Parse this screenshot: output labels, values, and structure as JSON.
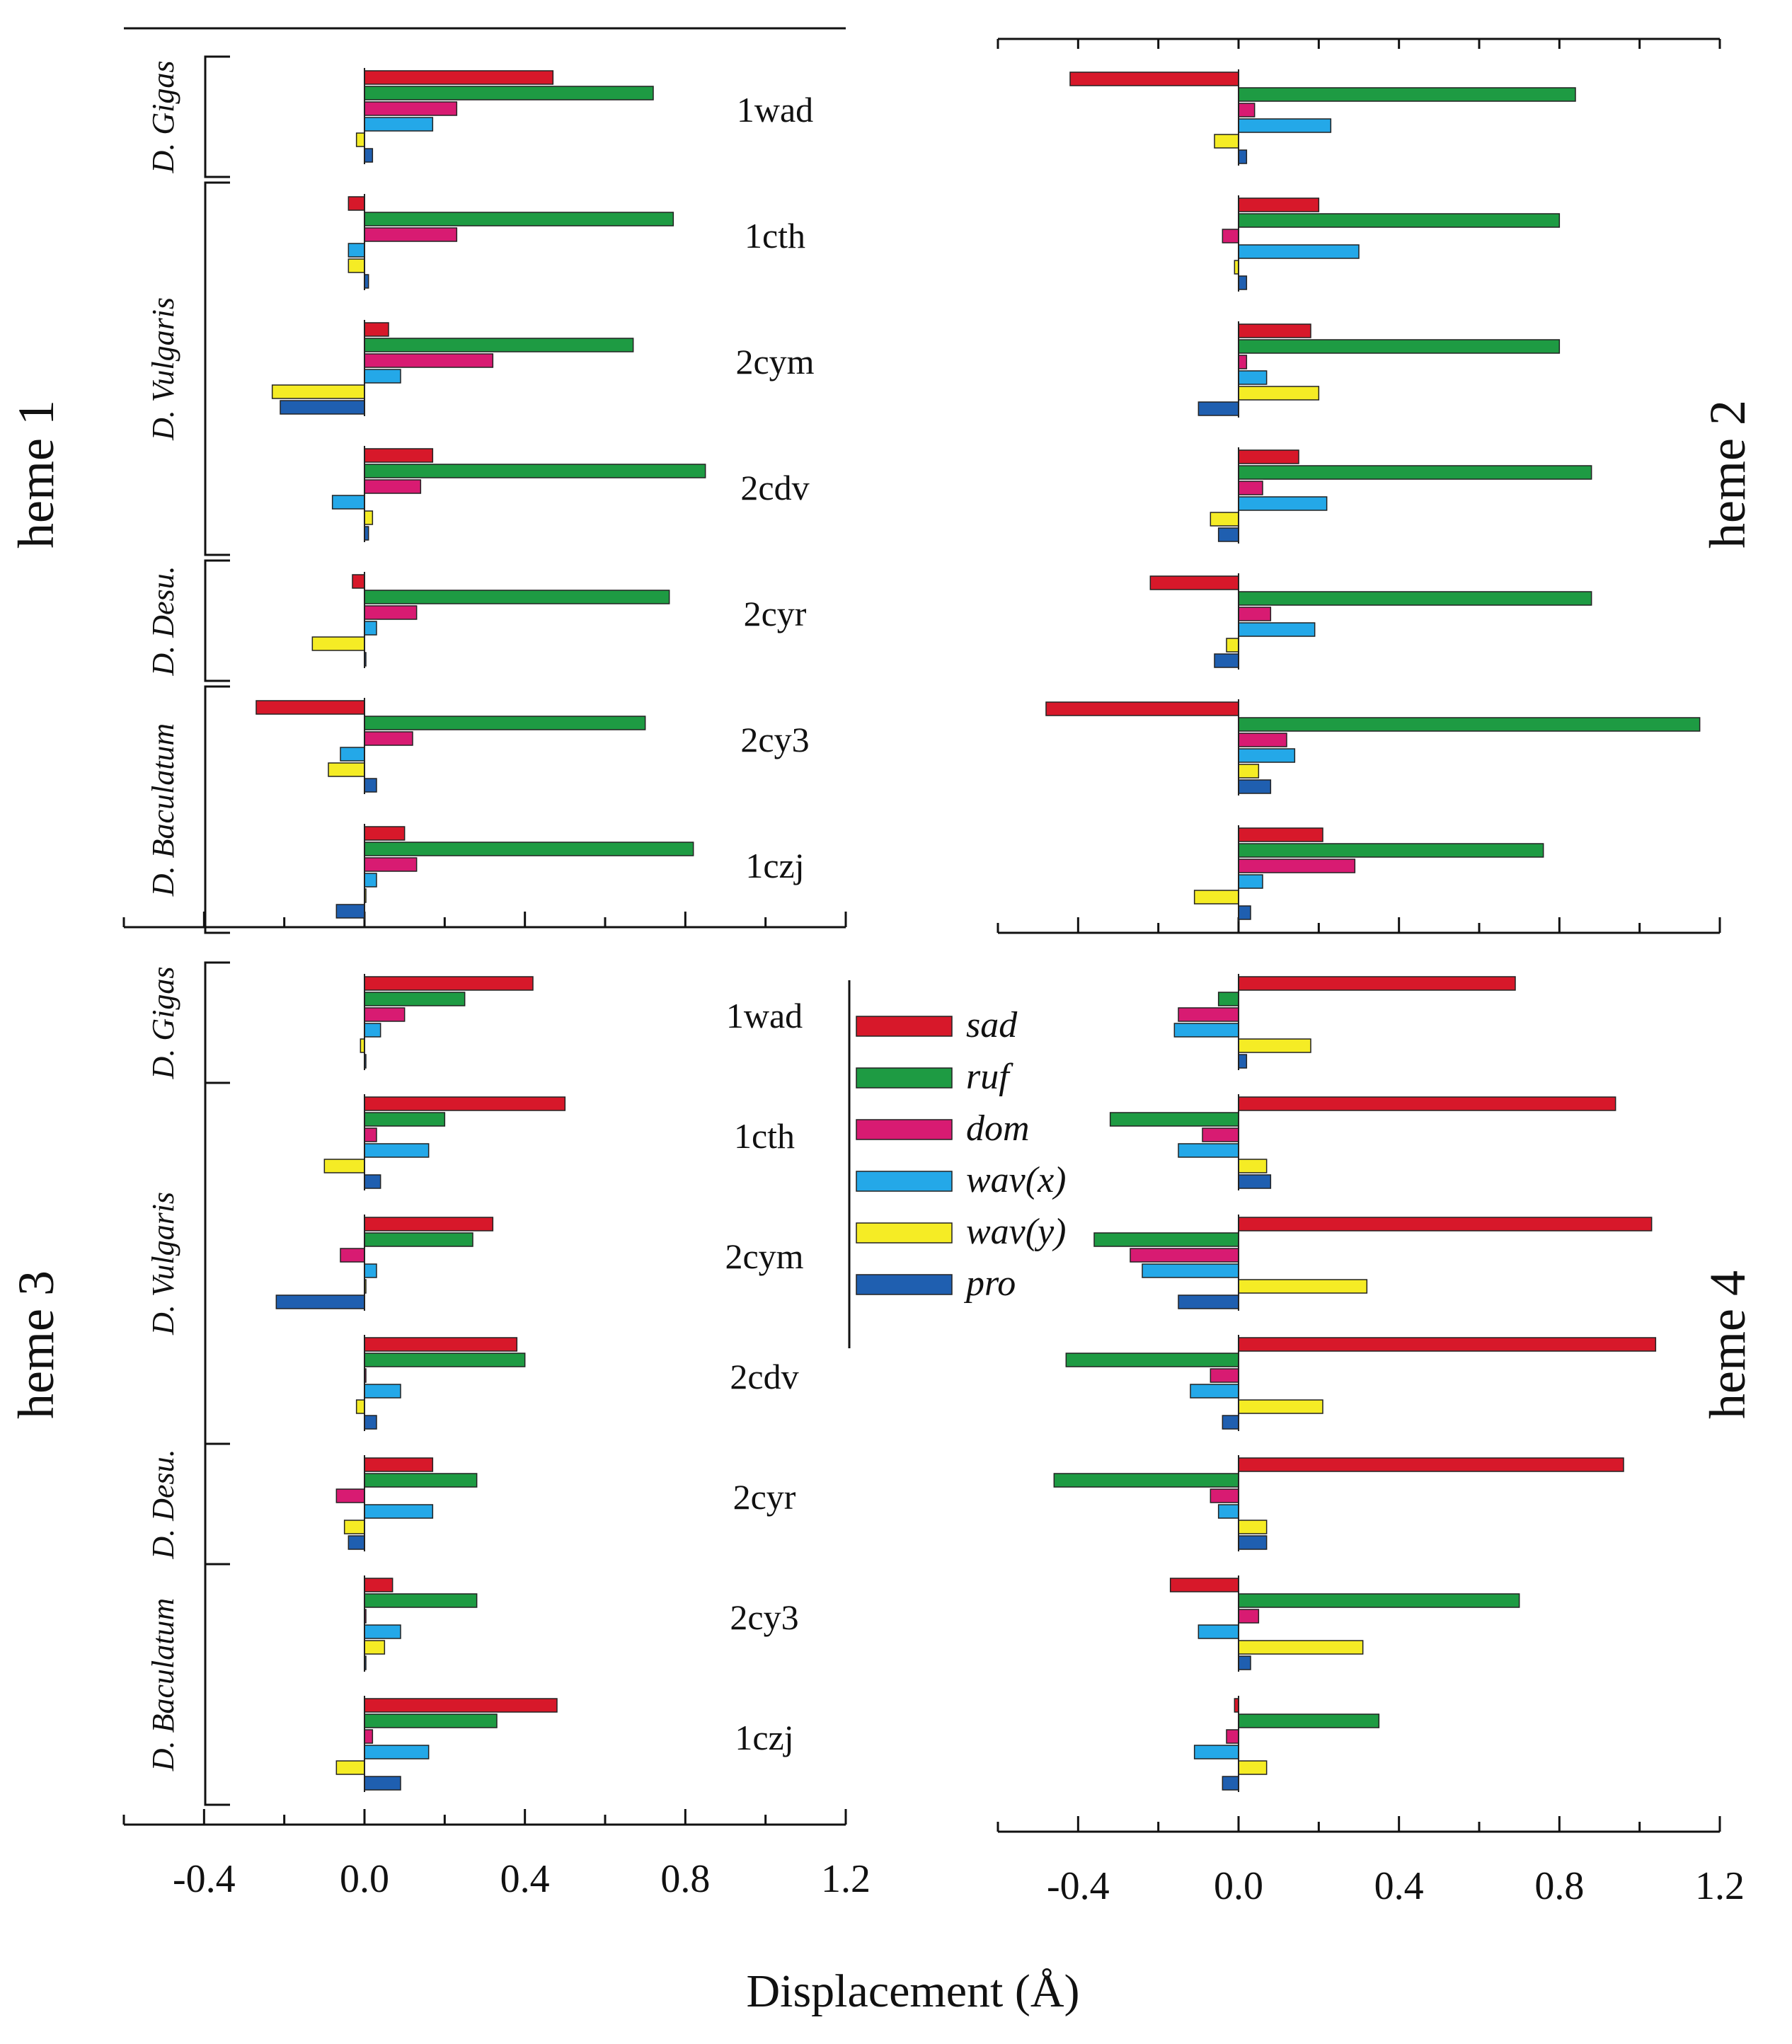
{
  "chart_data": {
    "type": "bar",
    "orientation": "horizontal",
    "xlabel": "Displacement (Å)",
    "xlim": [
      -0.6,
      1.2
    ],
    "xticks": [
      -0.4,
      0.0,
      0.4,
      0.8,
      1.2
    ],
    "xtick_labels": [
      "-0.4",
      "0.0",
      "0.4",
      "0.8",
      "1.2"
    ],
    "series": [
      {
        "key": "sad",
        "name": "sad",
        "color": "#d7182a"
      },
      {
        "key": "ruf",
        "name": "ruf",
        "color": "#1e9b43"
      },
      {
        "key": "dom",
        "name": "dom",
        "color": "#d81b72"
      },
      {
        "key": "wavx",
        "name": "wav(x)",
        "color": "#24a8e8"
      },
      {
        "key": "wavy",
        "name": "wav(y)",
        "color": "#f5ec25"
      },
      {
        "key": "pro",
        "name": "pro",
        "color": "#1f5fb0"
      }
    ],
    "proteins": [
      "1wad",
      "1cth",
      "2cym",
      "2cdv",
      "2cyr",
      "2cy3",
      "1czj"
    ],
    "species_groups": [
      {
        "label": "D. Gigas",
        "proteins": [
          "1wad"
        ]
      },
      {
        "label": "D. Vulgaris",
        "proteins": [
          "1cth",
          "2cym",
          "2cdv"
        ]
      },
      {
        "label": "D. Desu.",
        "proteins": [
          "2cyr"
        ]
      },
      {
        "label": "D. Baculatum",
        "proteins": [
          "2cy3",
          "1czj"
        ]
      }
    ],
    "panels": [
      {
        "title": "heme 1",
        "data": {
          "1wad": [
            0.47,
            0.72,
            0.23,
            0.17,
            -0.02,
            0.02
          ],
          "1cth": [
            -0.04,
            0.77,
            0.23,
            -0.04,
            -0.04,
            0.01
          ],
          "2cym": [
            0.06,
            0.67,
            0.32,
            0.09,
            -0.23,
            -0.21
          ],
          "2cdv": [
            0.17,
            0.85,
            0.14,
            -0.08,
            0.02,
            0.01
          ],
          "2cyr": [
            -0.03,
            0.76,
            0.13,
            0.03,
            -0.13,
            0.0
          ],
          "2cy3": [
            -0.27,
            0.7,
            0.12,
            -0.06,
            -0.09,
            0.03
          ],
          "1czj": [
            0.1,
            0.82,
            0.13,
            0.03,
            0.0,
            -0.07
          ]
        }
      },
      {
        "title": "heme 2",
        "data": {
          "1wad": [
            -0.42,
            0.84,
            0.04,
            0.23,
            -0.06,
            0.02
          ],
          "1cth": [
            0.2,
            0.8,
            -0.04,
            0.3,
            -0.01,
            0.02
          ],
          "2cym": [
            0.18,
            0.8,
            0.02,
            0.07,
            0.2,
            -0.1
          ],
          "2cdv": [
            0.15,
            0.88,
            0.06,
            0.22,
            -0.07,
            -0.05
          ],
          "2cyr": [
            -0.22,
            0.88,
            0.08,
            0.19,
            -0.03,
            -0.06
          ],
          "2cy3": [
            -0.48,
            1.15,
            0.12,
            0.14,
            0.05,
            0.08
          ],
          "1czj": [
            0.21,
            0.76,
            0.29,
            0.06,
            -0.11,
            0.03
          ]
        }
      },
      {
        "title": "heme 3",
        "data": {
          "1wad": [
            0.42,
            0.25,
            0.1,
            0.04,
            -0.01,
            0.0
          ],
          "1cth": [
            0.5,
            0.2,
            0.03,
            0.16,
            -0.1,
            0.04
          ],
          "2cym": [
            0.32,
            0.27,
            -0.06,
            0.03,
            0.0,
            -0.22
          ],
          "2cdv": [
            0.38,
            0.4,
            0.0,
            0.09,
            -0.02,
            0.03
          ],
          "2cyr": [
            0.17,
            0.28,
            -0.07,
            0.17,
            -0.05,
            -0.04
          ],
          "2cy3": [
            0.07,
            0.28,
            0.0,
            0.09,
            0.05,
            0.0
          ],
          "1czj": [
            0.48,
            0.33,
            0.02,
            0.16,
            -0.07,
            0.09
          ]
        }
      },
      {
        "title": "heme 4",
        "data": {
          "1wad": [
            0.69,
            -0.05,
            -0.15,
            -0.16,
            0.18,
            0.02
          ],
          "1cth": [
            0.94,
            -0.32,
            -0.09,
            -0.15,
            0.07,
            0.08
          ],
          "2cym": [
            1.03,
            -0.36,
            -0.27,
            -0.24,
            0.32,
            -0.15
          ],
          "2cdv": [
            1.04,
            -0.43,
            -0.07,
            -0.12,
            0.21,
            -0.04
          ],
          "2cyr": [
            0.96,
            -0.46,
            -0.07,
            -0.05,
            0.07,
            0.07
          ],
          "2cy3": [
            -0.17,
            0.7,
            0.05,
            -0.1,
            0.31,
            0.03
          ],
          "1czj": [
            -0.01,
            0.35,
            -0.03,
            -0.11,
            0.07,
            -0.04
          ]
        }
      }
    ]
  }
}
